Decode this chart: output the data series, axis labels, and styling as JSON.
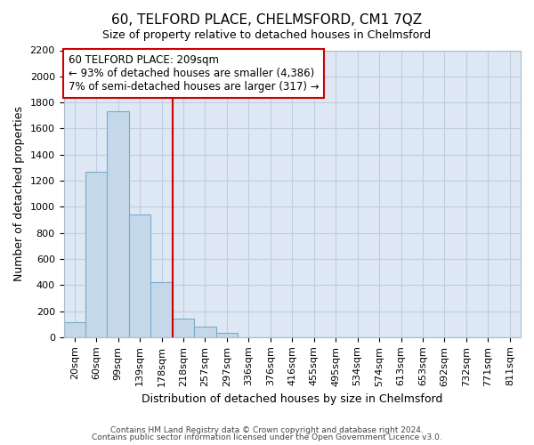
{
  "title": "60, TELFORD PLACE, CHELMSFORD, CM1 7QZ",
  "subtitle": "Size of property relative to detached houses in Chelmsford",
  "xlabel": "Distribution of detached houses by size in Chelmsford",
  "ylabel": "Number of detached properties",
  "footnote1": "Contains HM Land Registry data © Crown copyright and database right 2024.",
  "footnote2": "Contains public sector information licensed under the Open Government Licence v3.0.",
  "categories": [
    "20sqm",
    "60sqm",
    "99sqm",
    "139sqm",
    "178sqm",
    "218sqm",
    "257sqm",
    "297sqm",
    "336sqm",
    "376sqm",
    "416sqm",
    "455sqm",
    "495sqm",
    "534sqm",
    "574sqm",
    "613sqm",
    "653sqm",
    "692sqm",
    "732sqm",
    "771sqm",
    "811sqm"
  ],
  "values": [
    115,
    1265,
    1735,
    940,
    420,
    145,
    80,
    35,
    0,
    0,
    0,
    0,
    0,
    0,
    0,
    0,
    0,
    0,
    0,
    0,
    0
  ],
  "bar_color": "#c5d8ea",
  "bar_edge_color": "#7aabcc",
  "grid_color": "#c0cce0",
  "plot_bg_color": "#dde8f4",
  "fig_bg_color": "#ffffff",
  "vline_index": 5,
  "vline_color": "#cc0000",
  "annotation_line1": "60 TELFORD PLACE: 209sqm",
  "annotation_line2": "← 93% of detached houses are smaller (4,386)",
  "annotation_line3": "7% of semi-detached houses are larger (317) →",
  "annotation_box_color": "#ffffff",
  "annotation_box_edge": "#cc0000",
  "ylim": [
    0,
    2200
  ],
  "yticks": [
    0,
    200,
    400,
    600,
    800,
    1000,
    1200,
    1400,
    1600,
    1800,
    2000,
    2200
  ],
  "title_fontsize": 11,
  "subtitle_fontsize": 9,
  "ylabel_fontsize": 9,
  "xlabel_fontsize": 9,
  "tick_fontsize": 8,
  "annot_fontsize": 8.5
}
